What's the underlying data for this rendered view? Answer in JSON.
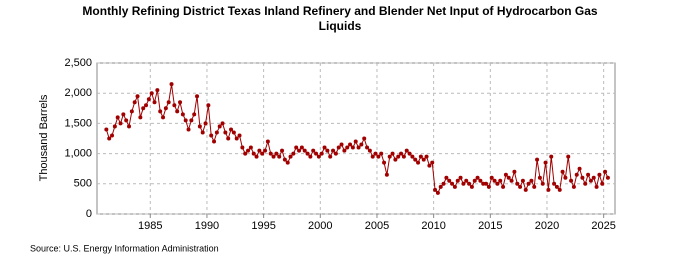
{
  "chart_data": {
    "type": "line",
    "title": "Monthly Refining District Texas Inland Refinery and Blender Net Input of Hydrocarbon Gas Liquids",
    "y_label": "Thousand Barrels",
    "source": "Source: U.S. Energy Information Administration",
    "color": "#a00000",
    "grid": true,
    "xlim": [
      1980.3,
      2026
    ],
    "xticks": [
      1985,
      1990,
      1995,
      2000,
      2005,
      2010,
      2015,
      2020,
      2025
    ],
    "ylim": [
      0,
      2500
    ],
    "yticks": [
      0,
      500,
      {
        "value": 1000,
        "label": "1,000"
      },
      {
        "value": 1500,
        "label": "1,500"
      },
      {
        "value": 2000,
        "label": "2,000"
      },
      {
        "value": 2500,
        "label": "2,500"
      }
    ],
    "x": [
      1981.125,
      1981.375,
      1981.625,
      1981.875,
      1982.125,
      1982.375,
      1982.625,
      1982.875,
      1983.125,
      1983.375,
      1983.625,
      1983.875,
      1984.125,
      1984.375,
      1984.625,
      1984.875,
      1985.125,
      1985.375,
      1985.625,
      1985.875,
      1986.125,
      1986.375,
      1986.625,
      1986.875,
      1987.125,
      1987.375,
      1987.625,
      1987.875,
      1988.125,
      1988.375,
      1988.625,
      1988.875,
      1989.125,
      1989.375,
      1989.625,
      1989.875,
      1990.125,
      1990.375,
      1990.625,
      1990.875,
      1991.125,
      1991.375,
      1991.625,
      1991.875,
      1992.125,
      1992.375,
      1992.625,
      1992.875,
      1993.125,
      1993.375,
      1993.625,
      1993.875,
      1994.125,
      1994.375,
      1994.625,
      1994.875,
      1995.125,
      1995.375,
      1995.625,
      1995.875,
      1996.125,
      1996.375,
      1996.625,
      1996.875,
      1997.125,
      1997.375,
      1997.625,
      1997.875,
      1998.125,
      1998.375,
      1998.625,
      1998.875,
      1999.125,
      1999.375,
      1999.625,
      1999.875,
      2000.125,
      2000.375,
      2000.625,
      2000.875,
      2001.125,
      2001.375,
      2001.625,
      2001.875,
      2002.125,
      2002.375,
      2002.625,
      2002.875,
      2003.125,
      2003.375,
      2003.625,
      2003.875,
      2004.125,
      2004.375,
      2004.625,
      2004.875,
      2005.125,
      2005.375,
      2005.625,
      2005.875,
      2006.125,
      2006.375,
      2006.625,
      2006.875,
      2007.125,
      2007.375,
      2007.625,
      2007.875,
      2008.125,
      2008.375,
      2008.625,
      2008.875,
      2009.125,
      2009.375,
      2009.625,
      2009.875,
      2010.125,
      2010.375,
      2010.625,
      2010.875,
      2011.125,
      2011.375,
      2011.625,
      2011.875,
      2012.125,
      2012.375,
      2012.625,
      2012.875,
      2013.125,
      2013.375,
      2013.625,
      2013.875,
      2014.125,
      2014.375,
      2014.625,
      2014.875,
      2015.125,
      2015.375,
      2015.625,
      2015.875,
      2016.125,
      2016.375,
      2016.625,
      2016.875,
      2017.125,
      2017.375,
      2017.625,
      2017.875,
      2018.125,
      2018.375,
      2018.625,
      2018.875,
      2019.125,
      2019.375,
      2019.625,
      2019.875,
      2020.125,
      2020.375,
      2020.625,
      2020.875,
      2021.125,
      2021.375,
      2021.625,
      2021.875,
      2022.125,
      2022.375,
      2022.625,
      2022.875,
      2023.125,
      2023.375,
      2023.625,
      2023.875,
      2024.125,
      2024.375,
      2024.625,
      2024.875,
      2025.125,
      2025.375
    ],
    "values": [
      1400,
      1250,
      1300,
      1450,
      1600,
      1500,
      1650,
      1550,
      1450,
      1700,
      1850,
      1950,
      1600,
      1750,
      1800,
      1900,
      2000,
      1850,
      2050,
      1700,
      1600,
      1750,
      1850,
      2150,
      1800,
      1700,
      1850,
      1650,
      1550,
      1400,
      1550,
      1650,
      1950,
      1450,
      1350,
      1500,
      1800,
      1300,
      1200,
      1350,
      1450,
      1500,
      1350,
      1250,
      1400,
      1350,
      1250,
      1300,
      1100,
      1000,
      1050,
      1100,
      1000,
      950,
      1050,
      1000,
      1050,
      1200,
      1000,
      950,
      1000,
      950,
      1050,
      900,
      850,
      950,
      1000,
      1100,
      1050,
      1100,
      1050,
      1000,
      950,
      1050,
      1000,
      950,
      1000,
      1100,
      1050,
      950,
      1050,
      1000,
      1100,
      1150,
      1050,
      1100,
      1150,
      1100,
      1200,
      1100,
      1150,
      1250,
      1100,
      1050,
      950,
      1000,
      950,
      1000,
      850,
      650,
      950,
      1000,
      900,
      950,
      1000,
      950,
      1050,
      1000,
      950,
      900,
      850,
      950,
      900,
      950,
      800,
      850,
      400,
      350,
      450,
      500,
      600,
      550,
      500,
      450,
      550,
      600,
      500,
      550,
      500,
      450,
      550,
      600,
      550,
      500,
      500,
      450,
      600,
      550,
      500,
      550,
      450,
      650,
      600,
      550,
      700,
      500,
      450,
      550,
      400,
      500,
      550,
      450,
      900,
      600,
      500,
      850,
      400,
      950,
      500,
      450,
      400,
      700,
      600,
      950,
      550,
      450,
      650,
      750,
      600,
      500,
      650,
      550,
      600,
      450,
      650,
      500,
      700,
      600
    ]
  }
}
